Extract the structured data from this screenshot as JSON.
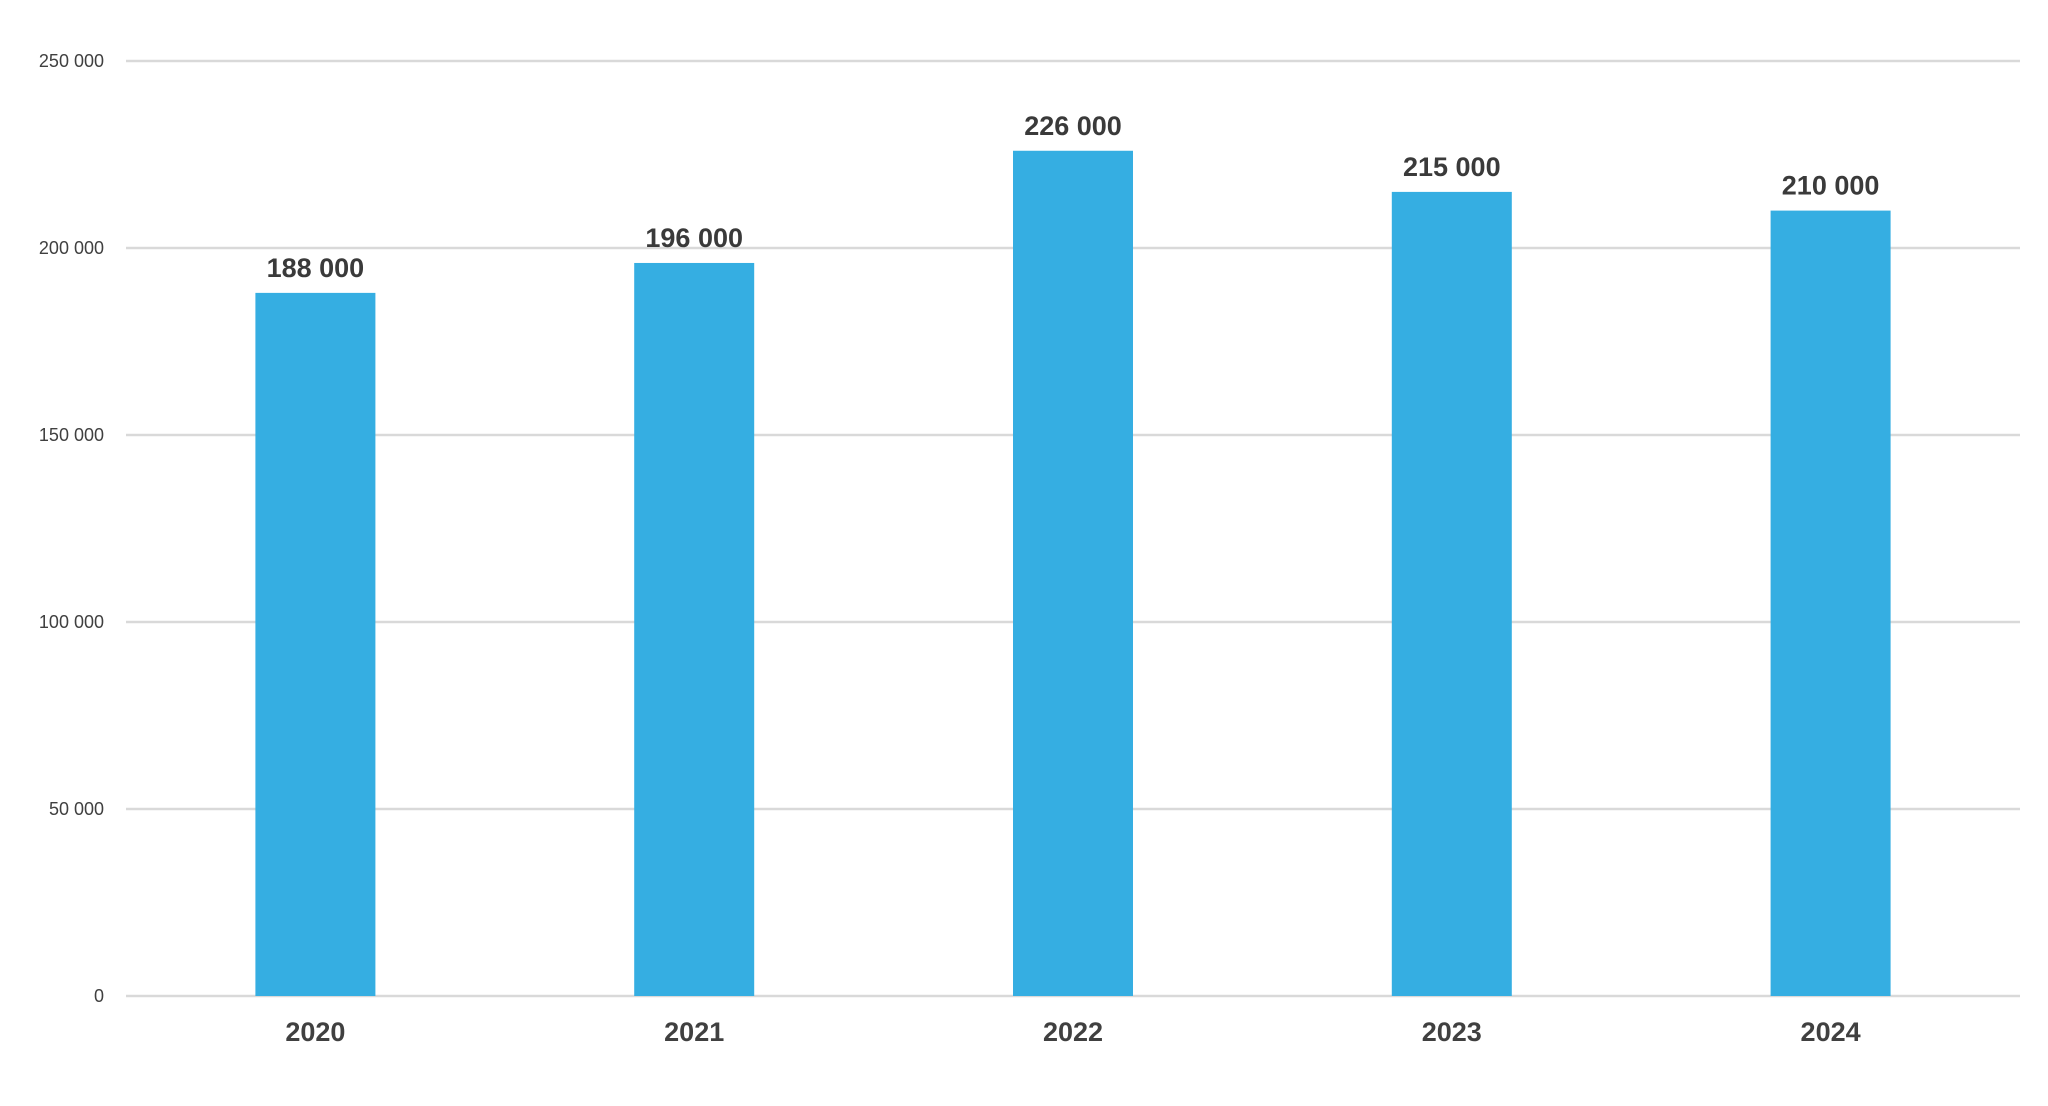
{
  "chart_data": {
    "type": "bar",
    "title": "",
    "xlabel": "",
    "ylabel": "",
    "categories": [
      "2020",
      "2021",
      "2022",
      "2023",
      "2024"
    ],
    "values": [
      188000,
      196000,
      226000,
      215000,
      210000
    ],
    "value_labels": [
      "188 000",
      "196 000",
      "226 000",
      "215 000",
      "210 000"
    ],
    "ylim": [
      0,
      250000
    ],
    "y_ticks": [
      0,
      50000,
      100000,
      150000,
      200000,
      250000
    ],
    "y_tick_labels": [
      "0",
      "50 000",
      "100 000",
      "150 000",
      "200 000",
      "250 000"
    ],
    "grid": true,
    "legend": "none",
    "bar_color": "#35AEE2",
    "grid_color": "#D9D9D9",
    "text_color": "#404040"
  }
}
